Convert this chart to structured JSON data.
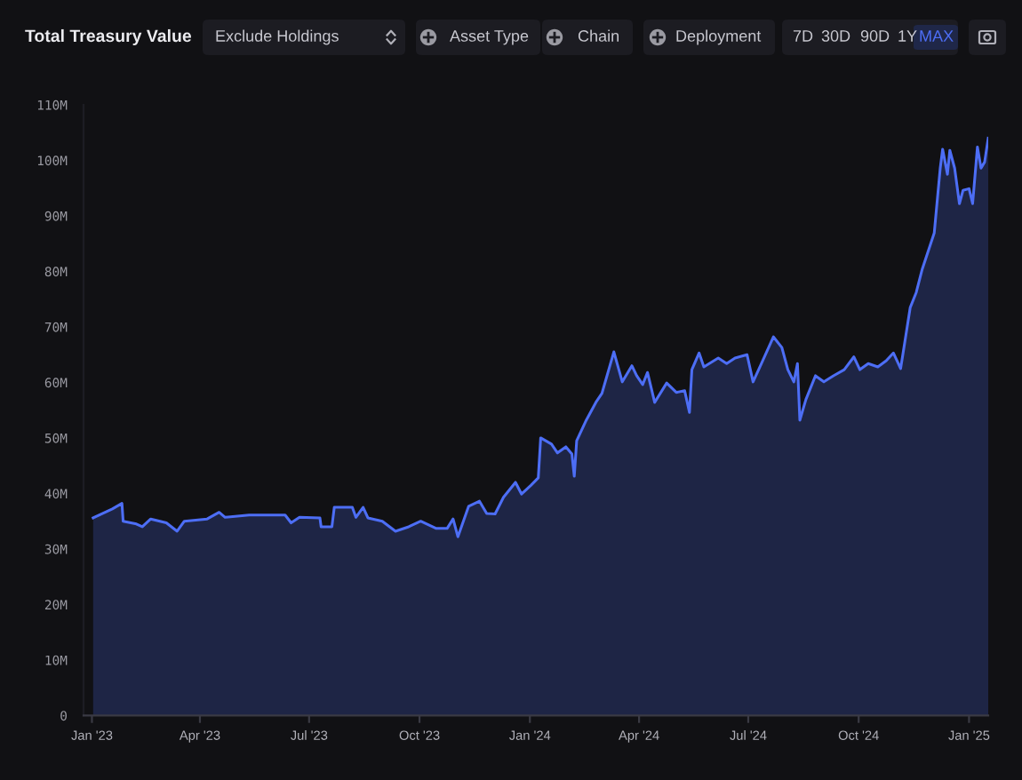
{
  "chart_data": {
    "type": "area",
    "title": "Total Treasury Value",
    "annotations": [
      "Exclude Holdings",
      "Asset Type",
      "Chain",
      "Deployment",
      "7D",
      "30D",
      "90D",
      "1Y",
      "MAX"
    ],
    "x": [
      "2023-01-02",
      "2023-01-18",
      "2023-01-26",
      "2023-01-27",
      "2023-02-07",
      "2023-02-12",
      "2023-02-19",
      "2023-03-04",
      "2023-03-13",
      "2023-03-19",
      "2023-04-07",
      "2023-04-17",
      "2023-04-22",
      "2023-05-12",
      "2023-06-11",
      "2023-06-16",
      "2023-06-23",
      "2023-07-10",
      "2023-07-11",
      "2023-07-20",
      "2023-07-22",
      "2023-08-06",
      "2023-08-09",
      "2023-08-15",
      "2023-08-19",
      "2023-08-31",
      "2023-09-11",
      "2023-09-22",
      "2023-10-02",
      "2023-10-15",
      "2023-10-24",
      "2023-10-29",
      "2023-11-02",
      "2023-11-11",
      "2023-11-20",
      "2023-11-26",
      "2023-12-03",
      "2023-12-10",
      "2023-12-20",
      "2023-12-25",
      "2024-01-02",
      "2024-01-08",
      "2024-01-10",
      "2024-01-19",
      "2024-01-24",
      "2024-01-31",
      "2024-02-05",
      "2024-02-07",
      "2024-02-09",
      "2024-02-17",
      "2024-02-25",
      "2024-03-01",
      "2024-03-11",
      "2024-03-18",
      "2024-03-26",
      "2024-03-30",
      "2024-04-04",
      "2024-04-08",
      "2024-04-14",
      "2024-04-24",
      "2024-05-02",
      "2024-05-09",
      "2024-05-13",
      "2024-05-15",
      "2024-05-21",
      "2024-05-25",
      "2024-06-06",
      "2024-06-13",
      "2024-06-20",
      "2024-06-30",
      "2024-07-05",
      "2024-07-12",
      "2024-07-22",
      "2024-07-29",
      "2024-08-03",
      "2024-08-08",
      "2024-08-11",
      "2024-08-13",
      "2024-08-18",
      "2024-08-26",
      "2024-09-02",
      "2024-09-10",
      "2024-09-19",
      "2024-09-27",
      "2024-10-02",
      "2024-10-09",
      "2024-10-17",
      "2024-10-24",
      "2024-10-30",
      "2024-11-05",
      "2024-11-13",
      "2024-11-18",
      "2024-11-23",
      "2024-12-03",
      "2024-12-08",
      "2024-12-10",
      "2024-12-14",
      "2024-12-16",
      "2024-12-20",
      "2024-12-24",
      "2024-12-27",
      "2025-01-01",
      "2025-01-04",
      "2025-01-08",
      "2025-01-11",
      "2025-01-14",
      "2025-01-17"
    ],
    "series": [
      {
        "color": "#4d6ef5",
        "values": [
          35.6,
          37.2,
          38.2,
          35.0,
          34.5,
          34.0,
          35.4,
          34.7,
          33.2,
          35.0,
          35.4,
          36.6,
          35.7,
          36.1,
          36.1,
          34.7,
          35.7,
          35.6,
          34.0,
          34.0,
          37.5,
          37.5,
          35.7,
          37.5,
          35.6,
          35.0,
          33.2,
          34.0,
          35.0,
          33.7,
          33.7,
          35.4,
          32.2,
          37.7,
          38.6,
          36.4,
          36.3,
          39.3,
          42.0,
          39.9,
          41.5,
          42.8,
          50.0,
          48.9,
          47.3,
          48.4,
          47.1,
          43.1,
          49.5,
          53.2,
          56.4,
          58.0,
          65.5,
          60.1,
          63.0,
          61.2,
          59.6,
          61.8,
          56.4,
          59.9,
          58.2,
          58.5,
          54.6,
          62.3,
          65.3,
          62.8,
          64.4,
          63.4,
          64.4,
          65.0,
          60.1,
          63.4,
          68.2,
          66.3,
          62.3,
          60.1,
          63.4,
          53.2,
          56.9,
          61.2,
          60.1,
          61.2,
          62.3,
          64.6,
          62.3,
          63.4,
          62.8,
          63.9,
          65.3,
          62.5,
          73.5,
          76.2,
          80.4,
          86.9,
          98.6,
          102.0,
          97.5,
          101.8,
          98.6,
          92.2,
          94.6,
          94.9,
          92.2,
          102.4,
          98.6,
          99.7,
          104.0
        ]
      }
    ],
    "xlim": [
      "2022-12-25",
      "2025-01-17"
    ],
    "xticks": [
      {
        "value": "2023-01-01",
        "label": "Jan '23"
      },
      {
        "value": "2023-04-01",
        "label": "Apr '23"
      },
      {
        "value": "2023-07-01",
        "label": "Jul '23"
      },
      {
        "value": "2023-10-01",
        "label": "Oct '23"
      },
      {
        "value": "2024-01-01",
        "label": "Jan '24"
      },
      {
        "value": "2024-04-01",
        "label": "Apr '24"
      },
      {
        "value": "2024-07-01",
        "label": "Jul '24"
      },
      {
        "value": "2024-10-01",
        "label": "Oct '24"
      },
      {
        "value": "2025-01-01",
        "label": "Jan '25"
      }
    ],
    "ylim": [
      0,
      110
    ],
    "yticks": [
      0,
      {
        "value": 10,
        "label": "10M"
      },
      {
        "value": 20,
        "label": "20M"
      },
      {
        "value": 30,
        "label": "30M"
      },
      {
        "value": 40,
        "label": "40M"
      },
      {
        "value": 50,
        "label": "50M"
      },
      {
        "value": 60,
        "label": "60M"
      },
      {
        "value": 70,
        "label": "70M"
      },
      {
        "value": 80,
        "label": "80M"
      },
      {
        "value": 90,
        "label": "90M"
      },
      {
        "value": 100,
        "label": "100M"
      },
      {
        "value": 110,
        "label": "110M"
      }
    ]
  }
}
